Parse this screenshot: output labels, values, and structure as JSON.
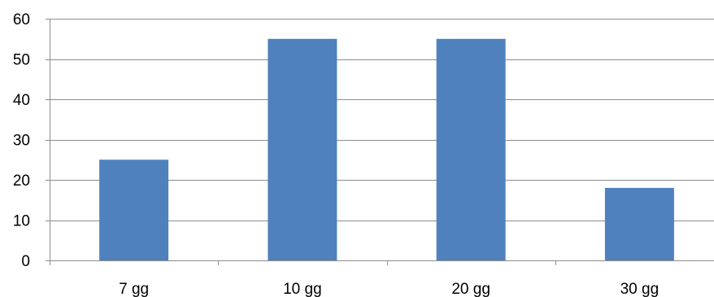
{
  "chart_data": {
    "type": "bar",
    "categories": [
      "7 gg",
      "10 gg",
      "20 gg",
      "30 gg"
    ],
    "values": [
      25,
      55,
      55,
      18
    ],
    "ylim": [
      0,
      60
    ],
    "yticks": [
      "0",
      "10",
      "20",
      "30",
      "40",
      "50",
      "60"
    ],
    "grid": true,
    "legend": "none",
    "bar_color": "#4F81BD",
    "grid_color": "#8C8C8C"
  }
}
